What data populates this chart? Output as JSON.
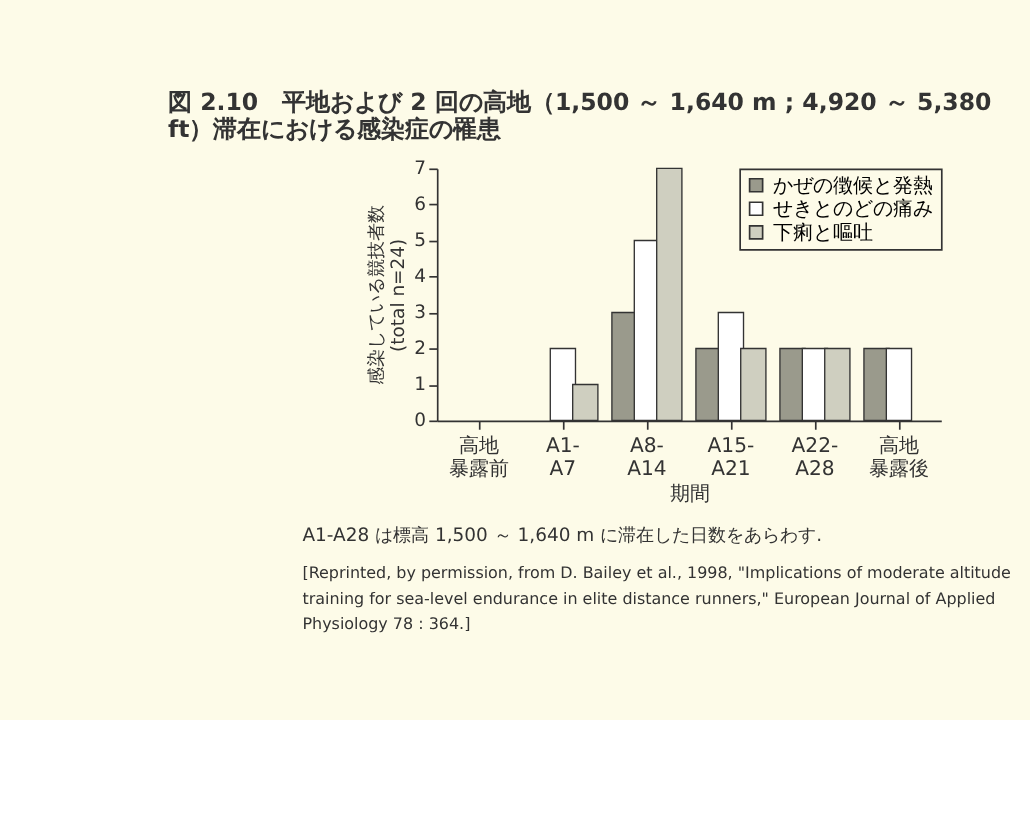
{
  "chart_data": {
    "type": "bar",
    "title": "図 2.10　平地および 2 回の高地（1,500 ～ 1,640 m ; 4,920 ～ 5,380 ft）滞在における感染症の罹患",
    "categories": [
      "高地暴露前",
      "A1-A7",
      "A8-A14",
      "A15-A21",
      "A22-A28",
      "高地暴露後"
    ],
    "series": [
      {
        "name": "かぜの徴候と発熱",
        "color": "#9a9a8c",
        "values": [
          null,
          null,
          3,
          2,
          2,
          2
        ]
      },
      {
        "name": "せきとのどの痛み",
        "color": "#ffffff",
        "values": [
          null,
          2,
          5,
          3,
          2,
          2
        ]
      },
      {
        "name": "下痢と嘔吐",
        "color": "#cfcfc0",
        "values": [
          null,
          1,
          7,
          2,
          2,
          null
        ]
      }
    ],
    "xlabel": "期間",
    "ylabel": "感染している競技者数 (total n=24)",
    "ylim": [
      0,
      7
    ],
    "yticks": [
      0,
      1,
      2,
      3,
      4,
      5,
      6,
      7
    ],
    "grid": false,
    "legend": "top right",
    "annotations": [
      "A1-A28 は標高 1,500 ～ 1,640 m に滞在した日数をあらわす.",
      "[Reprinted, by permission, from D. Bailey et al., 1998, \"Implications of moderate altitude training for sea-level endurance in elite distance runners,\" European Journal of Applied Physiology 78 : 364.]"
    ]
  }
}
